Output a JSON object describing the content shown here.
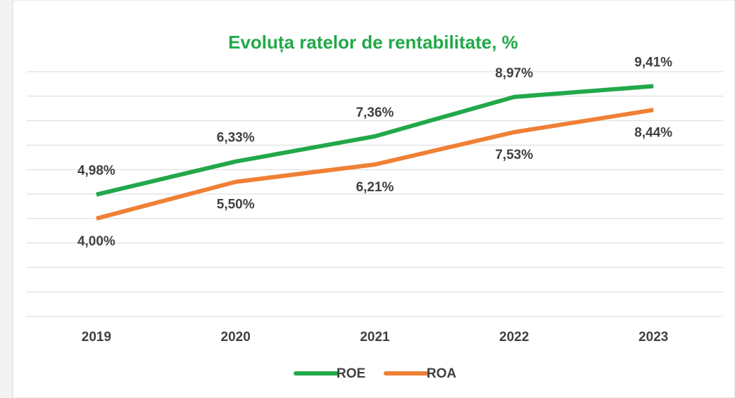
{
  "chart_data": {
    "type": "line",
    "title": "Evoluța ratelor de rentabilitate, %",
    "categories": [
      "2019",
      "2020",
      "2021",
      "2022",
      "2023"
    ],
    "series": [
      {
        "name": "ROE",
        "color": "#22a84a",
        "values": [
          4.98,
          6.33,
          7.36,
          8.97,
          9.41
        ],
        "value_labels": [
          "4,98%",
          "6,33%",
          "7,36%",
          "8,97%",
          "9,41%"
        ]
      },
      {
        "name": "ROA",
        "color": "#ef8035",
        "values": [
          4.0,
          5.5,
          6.21,
          7.53,
          8.44
        ],
        "value_labels": [
          "4,00%",
          "5,50%",
          "6,21%",
          "7,53%",
          "8,44%"
        ]
      }
    ],
    "ylim": [
      0,
      10
    ],
    "yticks": [
      0,
      1,
      2,
      3,
      4,
      5,
      6,
      7,
      8,
      9,
      10
    ],
    "grid": true,
    "legend": "bottom"
  }
}
